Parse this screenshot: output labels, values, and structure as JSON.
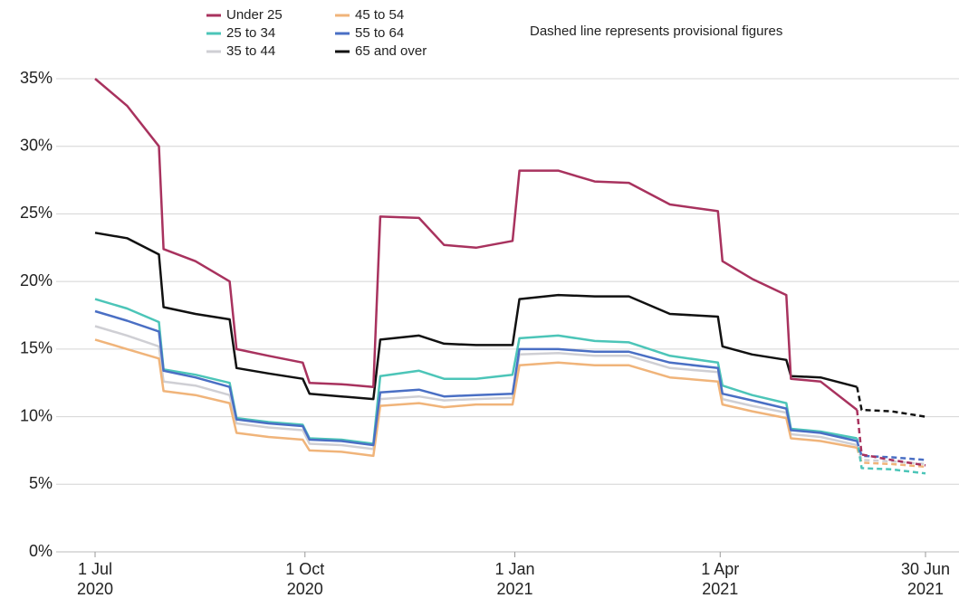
{
  "chart_data": {
    "type": "line",
    "annotation": "Dashed line represents provisional figures",
    "provisional_from": "2021-05-31",
    "x": [
      "2020-07-01",
      "2020-07-15",
      "2020-07-29",
      "2020-07-31",
      "2020-08-14",
      "2020-08-29",
      "2020-09-01",
      "2020-09-15",
      "2020-09-30",
      "2020-10-03",
      "2020-10-17",
      "2020-10-31",
      "2020-11-03",
      "2020-11-20",
      "2020-12-01",
      "2020-12-15",
      "2020-12-31",
      "2021-01-03",
      "2021-01-20",
      "2021-02-05",
      "2021-02-20",
      "2021-03-10",
      "2021-03-31",
      "2021-04-02",
      "2021-04-15",
      "2021-04-30",
      "2021-05-02",
      "2021-05-15",
      "2021-05-31",
      "2021-06-02",
      "2021-06-15",
      "2021-06-30"
    ],
    "xlim": [
      "2020-07-01",
      "2021-06-30"
    ],
    "xticks": [
      {
        "value": "2020-07-01",
        "label": [
          "1 Jul",
          "2020"
        ]
      },
      {
        "value": "2020-10-01",
        "label": [
          "1 Oct",
          "2020"
        ]
      },
      {
        "value": "2021-01-01",
        "label": [
          "1 Jan",
          "2021"
        ]
      },
      {
        "value": "2021-04-01",
        "label": [
          "1 Apr",
          "2021"
        ]
      },
      {
        "value": "2021-06-30",
        "label": [
          "30 Jun",
          "2021"
        ]
      }
    ],
    "ylim": [
      0,
      35
    ],
    "yticks": [
      {
        "value": 0,
        "label": "0%"
      },
      {
        "value": 5,
        "label": "5%"
      },
      {
        "value": 10,
        "label": "10%"
      },
      {
        "value": 15,
        "label": "15%"
      },
      {
        "value": 20,
        "label": "20%"
      },
      {
        "value": 25,
        "label": "25%"
      },
      {
        "value": 30,
        "label": "30%"
      },
      {
        "value": 35,
        "label": "35%"
      }
    ],
    "grid": true,
    "legend": "top",
    "series": [
      {
        "name": "Under 25",
        "color": "#a8325e",
        "values": [
          35,
          33,
          30,
          22.4,
          21.5,
          20,
          15,
          14.5,
          14,
          12.5,
          12.4,
          12.2,
          24.8,
          24.7,
          22.7,
          22.5,
          23,
          28.2,
          28.2,
          27.4,
          27.3,
          25.7,
          25.2,
          21.5,
          20.2,
          19,
          12.8,
          12.6,
          10.5,
          7.2,
          6.8,
          6.4
        ]
      },
      {
        "name": "25 to 34",
        "color": "#4cc5b8",
        "values": [
          18.7,
          18.0,
          17.0,
          13.5,
          13.1,
          12.5,
          9.9,
          9.6,
          9.4,
          8.4,
          8.3,
          8.0,
          13.0,
          13.4,
          12.8,
          12.8,
          13.1,
          15.8,
          16.0,
          15.6,
          15.5,
          14.5,
          14.0,
          12.3,
          11.6,
          11.0,
          9.1,
          8.9,
          8.4,
          6.2,
          6.1,
          5.8
        ]
      },
      {
        "name": "35 to 44",
        "color": "#cfcfd4",
        "values": [
          16.7,
          16.0,
          15.2,
          12.6,
          12.3,
          11.6,
          9.5,
          9.2,
          9.0,
          8.0,
          7.9,
          7.6,
          11.3,
          11.5,
          11.2,
          11.3,
          11.4,
          14.6,
          14.7,
          14.5,
          14.5,
          13.6,
          13.3,
          11.3,
          10.8,
          10.3,
          8.7,
          8.5,
          7.9,
          6.8,
          6.7,
          6.5
        ]
      },
      {
        "name": "45 to 54",
        "color": "#f0b47a",
        "values": [
          15.7,
          15.0,
          14.3,
          11.9,
          11.6,
          11.0,
          8.8,
          8.5,
          8.3,
          7.5,
          7.4,
          7.1,
          10.8,
          11.0,
          10.7,
          10.9,
          10.9,
          13.8,
          14.0,
          13.8,
          13.8,
          12.9,
          12.6,
          10.9,
          10.4,
          9.9,
          8.4,
          8.2,
          7.7,
          6.6,
          6.5,
          6.3
        ]
      },
      {
        "name": "55 to 64",
        "color": "#4a6fc4",
        "values": [
          17.8,
          17.1,
          16.3,
          13.4,
          12.9,
          12.2,
          9.8,
          9.5,
          9.3,
          8.3,
          8.2,
          7.9,
          11.8,
          12.0,
          11.5,
          11.6,
          11.7,
          15.0,
          15.0,
          14.8,
          14.8,
          14.0,
          13.6,
          11.7,
          11.2,
          10.6,
          9.0,
          8.8,
          8.2,
          7.1,
          7.0,
          6.8
        ]
      },
      {
        "name": "65 and over",
        "color": "#111111",
        "values": [
          23.6,
          23.2,
          22.0,
          18.1,
          17.6,
          17.2,
          13.6,
          13.2,
          12.8,
          11.7,
          11.5,
          11.3,
          15.7,
          16.0,
          15.4,
          15.3,
          15.3,
          18.7,
          19.0,
          18.9,
          18.9,
          17.6,
          17.4,
          15.2,
          14.6,
          14.2,
          13.0,
          12.9,
          12.2,
          10.5,
          10.4,
          10.0
        ]
      }
    ]
  }
}
